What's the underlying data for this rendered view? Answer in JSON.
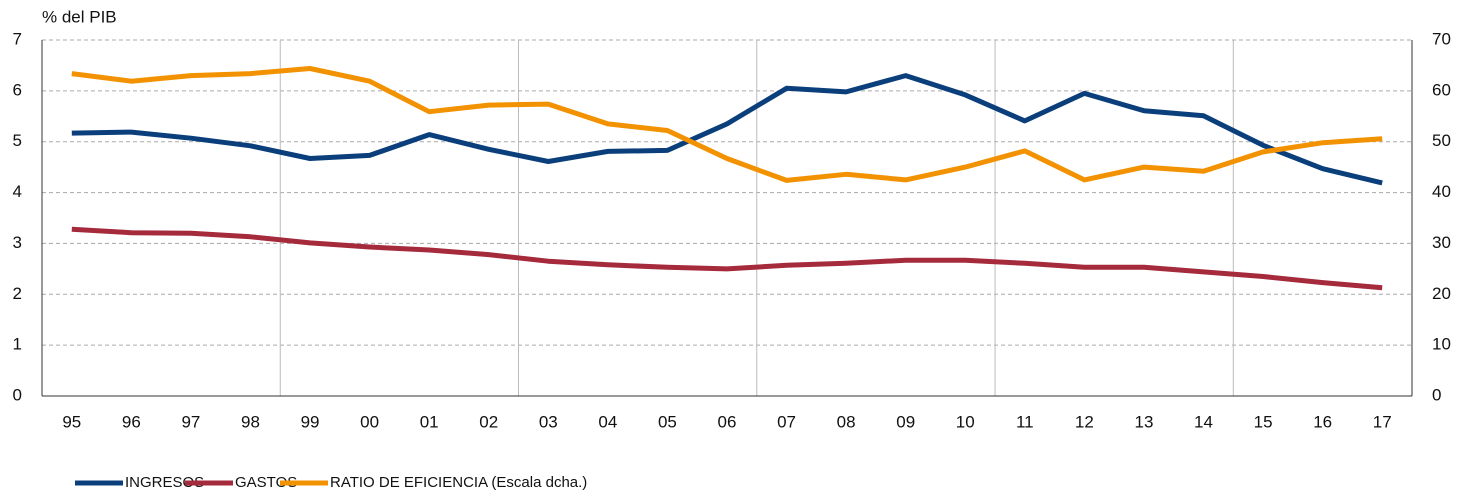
{
  "chart_data": {
    "type": "line",
    "y_axis_label": "% del PIB",
    "categories": [
      "95",
      "96",
      "97",
      "98",
      "99",
      "00",
      "01",
      "02",
      "03",
      "04",
      "05",
      "06",
      "07",
      "08",
      "09",
      "10",
      "11",
      "12",
      "13",
      "14",
      "15",
      "16",
      "17"
    ],
    "series": [
      {
        "name": "INGRESOS",
        "color": "#0b3f7c",
        "values": [
          5.17,
          5.19,
          5.07,
          4.92,
          4.67,
          4.73,
          5.14,
          4.85,
          4.61,
          4.81,
          4.83,
          5.35,
          6.05,
          5.98,
          6.3,
          5.92,
          5.41,
          5.95,
          5.61,
          5.51,
          4.93,
          4.47,
          4.19
        ]
      },
      {
        "name": "GASTOS",
        "color": "#a52a3c",
        "values": [
          3.28,
          3.21,
          3.2,
          3.13,
          3.01,
          2.93,
          2.87,
          2.78,
          2.65,
          2.58,
          2.53,
          2.5,
          2.57,
          2.61,
          2.67,
          2.67,
          2.61,
          2.53,
          2.53,
          2.44,
          2.35,
          2.23,
          2.13
        ]
      },
      {
        "name": "RATIO DE EFICIENCIA (Escala dcha.)",
        "color": "#f39200",
        "axis": "y2",
        "values": [
          63.4,
          61.9,
          63.0,
          63.4,
          64.4,
          61.9,
          55.9,
          57.2,
          57.4,
          53.5,
          52.2,
          46.7,
          42.4,
          43.6,
          42.5,
          45.0,
          48.2,
          42.5,
          45.0,
          44.2,
          48.0,
          49.8,
          50.6
        ]
      }
    ],
    "ylim": [
      0,
      7
    ],
    "yticks": [
      0,
      1,
      2,
      3,
      4,
      5,
      6,
      7
    ],
    "y2lim": [
      0,
      70
    ],
    "y2ticks": [
      0,
      10,
      20,
      30,
      40,
      50,
      60,
      70
    ],
    "grid": true
  }
}
